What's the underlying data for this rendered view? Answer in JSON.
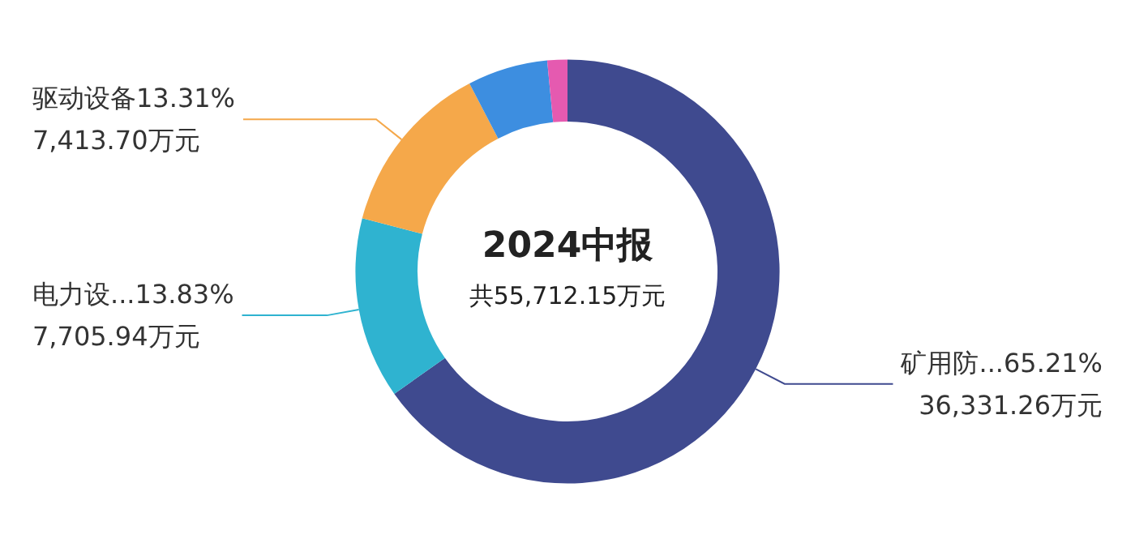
{
  "chart_data": {
    "type": "donut",
    "title": "2024中报",
    "annotations": [
      "共55,712.15万元"
    ],
    "categories": [
      "矿用防...",
      "电力设...",
      "驱动设备",
      null,
      null
    ],
    "values": [
      36331.26,
      7705.94,
      7413.7,
      3410,
      851.25
    ],
    "colors": [
      "#3f4a8f",
      "#2fb3d0",
      "#f5a84a",
      "#3d8ee0",
      "#e55ab0"
    ],
    "value_labels": [
      "65.21%\n36,331.26万元",
      "13.83%\n7,705.94万元",
      "13.31%\n7,413.70万元",
      null,
      null
    ],
    "legend": false
  }
}
